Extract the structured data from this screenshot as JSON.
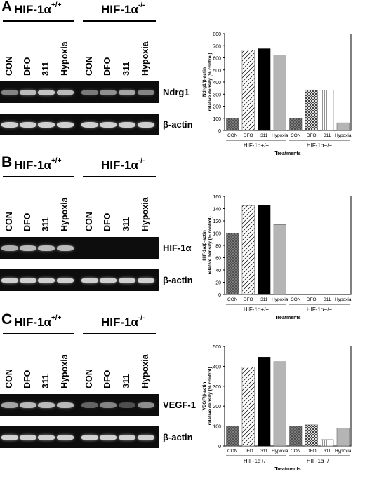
{
  "genotype_labels": {
    "wt_base": "HIF-1α",
    "wt_sup": "+/+",
    "ko_base": "HIF-1α",
    "ko_sup": "-/-"
  },
  "lanes": [
    "CON",
    "DFO",
    "311",
    "Hypoxia",
    "CON",
    "DFO",
    "311",
    "Hypoxia"
  ],
  "colors": {
    "gel_bg": "#0d0d0d",
    "band": "#e6e6e6"
  },
  "panels": [
    {
      "letter": "A",
      "gene_label": "Ndrg1",
      "control_label": "β-actin",
      "gene_band_intensity": [
        0.55,
        0.8,
        0.85,
        0.8,
        0.5,
        0.6,
        0.7,
        0.55
      ],
      "control_band_intensity": [
        0.9,
        0.9,
        0.9,
        0.9,
        0.9,
        0.9,
        0.9,
        0.9
      ],
      "chart_data": {
        "type": "bar",
        "categories": [
          "CON",
          "DFO",
          "311",
          "Hypoxia",
          "CON",
          "DFO",
          "311",
          "Hypoxia"
        ],
        "values": [
          100,
          665,
          675,
          622,
          100,
          335,
          333,
          63
        ],
        "group_labels": [
          "HIF-1α+/+",
          "HIF-1α−/−"
        ],
        "ylabel": "Ndrg1/β-actin relative density (% control)",
        "xlabel": "Treatments",
        "ylim": [
          0,
          800
        ],
        "yticks": [
          0,
          100,
          200,
          300,
          400,
          500,
          600,
          700,
          800
        ],
        "patterns": [
          "grid",
          "diag",
          "solid-black",
          "solid-gray",
          "grid",
          "cross",
          "vert",
          "solid-gray"
        ],
        "grid": false
      }
    },
    {
      "letter": "B",
      "gene_label": "HIF-1α",
      "control_label": "β-actin",
      "gene_band_intensity": [
        0.75,
        0.8,
        0.8,
        0.8,
        0,
        0,
        0,
        0
      ],
      "control_band_intensity": [
        0.9,
        0.9,
        0.9,
        0.9,
        0.9,
        0.9,
        0.9,
        0.9
      ],
      "chart_data": {
        "type": "bar",
        "categories": [
          "CON",
          "DFO",
          "311",
          "Hypoxia",
          "CON",
          "DFO",
          "311",
          "Hypoxia"
        ],
        "values": [
          100,
          145,
          146,
          114,
          0,
          0,
          0,
          0
        ],
        "group_labels": [
          "HIF-1α+/+",
          "HIF-1α−/−"
        ],
        "ylabel": "HIF-1α/β-actin relative density (% control)",
        "xlabel": "Treatments",
        "ylim": [
          0,
          160
        ],
        "yticks": [
          0,
          20,
          40,
          60,
          80,
          100,
          120,
          140,
          160
        ],
        "patterns": [
          "grid",
          "diag",
          "solid-black",
          "solid-gray",
          "grid",
          "diag",
          "solid-black",
          "solid-gray"
        ],
        "grid": false
      }
    },
    {
      "letter": "C",
      "gene_label": "VEGF-1",
      "control_label": "β-actin",
      "gene_band_intensity": [
        0.7,
        0.8,
        0.8,
        0.8,
        0.4,
        0.55,
        0.3,
        0.6
      ],
      "control_band_intensity": [
        0.9,
        0.9,
        0.9,
        0.9,
        0.9,
        0.9,
        0.9,
        0.9
      ],
      "chart_data": {
        "type": "bar",
        "categories": [
          "CON",
          "DFO",
          "311",
          "Hypoxia",
          "CON",
          "DFO",
          "311",
          "Hypoxia"
        ],
        "values": [
          100,
          397,
          446,
          423,
          100,
          106,
          32,
          90
        ],
        "group_labels": [
          "HIF-1α+/+",
          "HIF-1α−/−"
        ],
        "ylabel": "VEGF/β-actin relative density (% control)",
        "xlabel": "Treatments",
        "ylim": [
          0,
          500
        ],
        "yticks": [
          0,
          100,
          200,
          300,
          400,
          500
        ],
        "patterns": [
          "grid",
          "diag",
          "solid-black",
          "solid-gray",
          "grid",
          "cross",
          "vert",
          "solid-gray"
        ],
        "grid": false
      }
    }
  ]
}
